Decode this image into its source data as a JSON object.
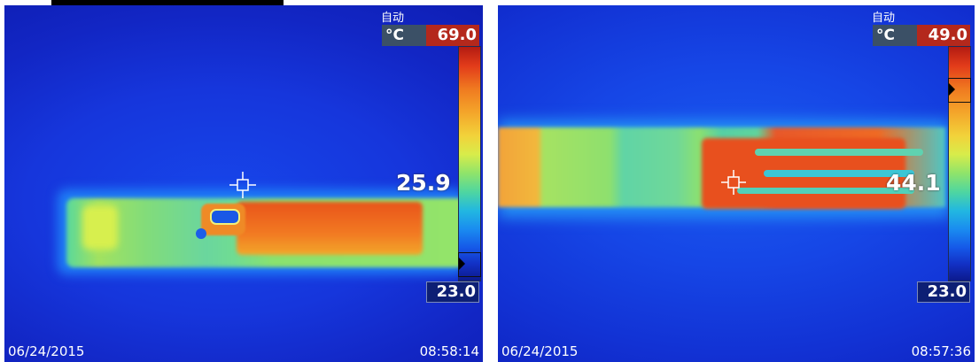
{
  "images": [
    {
      "mode_label": "自动",
      "unit": "°C",
      "scale_max": "69.0",
      "scale_min": "23.0",
      "spot_temp": "25.9",
      "date": "06/24/2015",
      "time": "08:58:14"
    },
    {
      "mode_label": "自动",
      "unit": "°C",
      "scale_max": "49.0",
      "scale_min": "23.0",
      "spot_temp": "44.1",
      "date": "06/24/2015",
      "time": "08:57:36"
    }
  ],
  "colors": {
    "scale_top": "#b31b12",
    "scale_bottom": "#0c1a8c",
    "background": "#1a2fd0",
    "hot": "#ef6a1c"
  },
  "icons": [
    "crosshair-icon",
    "scale-pointer-icon"
  ]
}
